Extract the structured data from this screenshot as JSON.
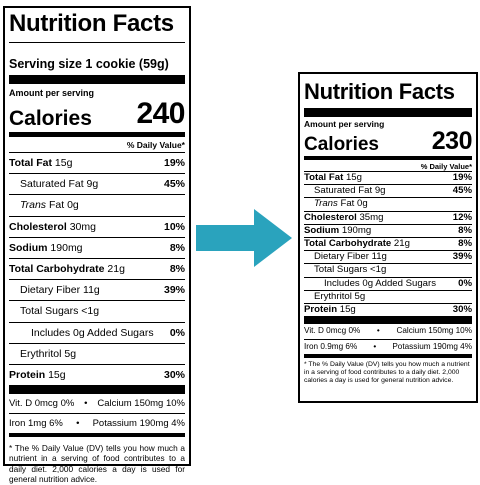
{
  "left": {
    "title": "Nutrition Facts",
    "serving_size": "Serving size 1 cookie (59g)",
    "amount_per_serving": "Amount per serving",
    "calories_label": "Calories",
    "calories_value": "240",
    "daily_value_header": "% Daily Value*",
    "rows": [
      {
        "name": "Total Fat",
        "amount": "15g",
        "dv": "19%",
        "bold": true,
        "indent": 0,
        "italic": false
      },
      {
        "name": "Saturated Fat",
        "amount": "9g",
        "dv": "45%",
        "bold": false,
        "indent": 1,
        "italic": false
      },
      {
        "name": "Trans",
        "amount": "Fat 0g",
        "dv": "",
        "bold": false,
        "indent": 1,
        "italic": true
      },
      {
        "name": "Cholesterol",
        "amount": "30mg",
        "dv": "10%",
        "bold": true,
        "indent": 0,
        "italic": false
      },
      {
        "name": "Sodium",
        "amount": "190mg",
        "dv": "8%",
        "bold": true,
        "indent": 0,
        "italic": false
      },
      {
        "name": "Total Carbohydrate",
        "amount": "21g",
        "dv": "8%",
        "bold": true,
        "indent": 0,
        "italic": false
      },
      {
        "name": "Dietary Fiber",
        "amount": "11g",
        "dv": "39%",
        "bold": false,
        "indent": 1,
        "italic": false
      },
      {
        "name": "Total Sugars",
        "amount": "<1g",
        "dv": "",
        "bold": false,
        "indent": 1,
        "italic": false
      },
      {
        "name": "Includes 0g Added Sugars",
        "amount": "",
        "dv": "0%",
        "bold": false,
        "indent": 2,
        "italic": false
      },
      {
        "name": "Erythritol",
        "amount": "5g",
        "dv": "",
        "bold": false,
        "indent": 1,
        "italic": false
      },
      {
        "name": "Protein",
        "amount": "15g",
        "dv": "30%",
        "bold": true,
        "indent": 0,
        "italic": false
      }
    ],
    "vitamins": [
      {
        "a": "Vit. D 0mcg 0%",
        "b": "Calcium 150mg 10%"
      },
      {
        "a": "Iron 1mg 6%",
        "b": "Potassium 190mg 4%"
      }
    ],
    "footnote": "* The % Daily Value (DV) tells you how much a nutrient in a serving of food contributes to a daily diet. 2,000 calories a day is used for general nutrition advice."
  },
  "right": {
    "title": "Nutrition Facts",
    "amount_per_serving": "Amount per serving",
    "calories_label": "Calories",
    "calories_value": "230",
    "daily_value_header": "% Daily Value*",
    "rows": [
      {
        "name": "Total Fat",
        "amount": "15g",
        "dv": "19%",
        "bold": true,
        "indent": 0,
        "italic": false
      },
      {
        "name": "Saturated Fat",
        "amount": "9g",
        "dv": "45%",
        "bold": false,
        "indent": 1,
        "italic": false
      },
      {
        "name": "Trans",
        "amount": "Fat 0g",
        "dv": "",
        "bold": false,
        "indent": 1,
        "italic": true
      },
      {
        "name": "Cholesterol",
        "amount": "35mg",
        "dv": "12%",
        "bold": true,
        "indent": 0,
        "italic": false
      },
      {
        "name": "Sodium",
        "amount": "190mg",
        "dv": "8%",
        "bold": true,
        "indent": 0,
        "italic": false
      },
      {
        "name": "Total Carbohydrate",
        "amount": "21g",
        "dv": "8%",
        "bold": true,
        "indent": 0,
        "italic": false
      },
      {
        "name": "Dietary Fiber",
        "amount": "11g",
        "dv": "39%",
        "bold": false,
        "indent": 1,
        "italic": false
      },
      {
        "name": "Total Sugars",
        "amount": "<1g",
        "dv": "",
        "bold": false,
        "indent": 1,
        "italic": false
      },
      {
        "name": "Includes 0g Added Sugars",
        "amount": "",
        "dv": "0%",
        "bold": false,
        "indent": 2,
        "italic": false
      },
      {
        "name": "Erythritol",
        "amount": "5g",
        "dv": "",
        "bold": false,
        "indent": 1,
        "italic": false
      },
      {
        "name": "Protein",
        "amount": "15g",
        "dv": "30%",
        "bold": true,
        "indent": 0,
        "italic": false
      }
    ],
    "vitamins": [
      {
        "a": "Vit. D 0mcg 0%",
        "b": "Calcium 150mg 10%"
      },
      {
        "a": "Iron 0.9mg 6%",
        "b": "Potassium 190mg 4%"
      }
    ],
    "footnote": "* The % Daily Value (DV) tells you how much a nutrient in a serving of food contributes to a daily diet. 2,000 calories a day is used for general nutrition advice."
  },
  "arrow": {
    "color": "#2aa3bd",
    "icon": "right-arrow-icon"
  }
}
